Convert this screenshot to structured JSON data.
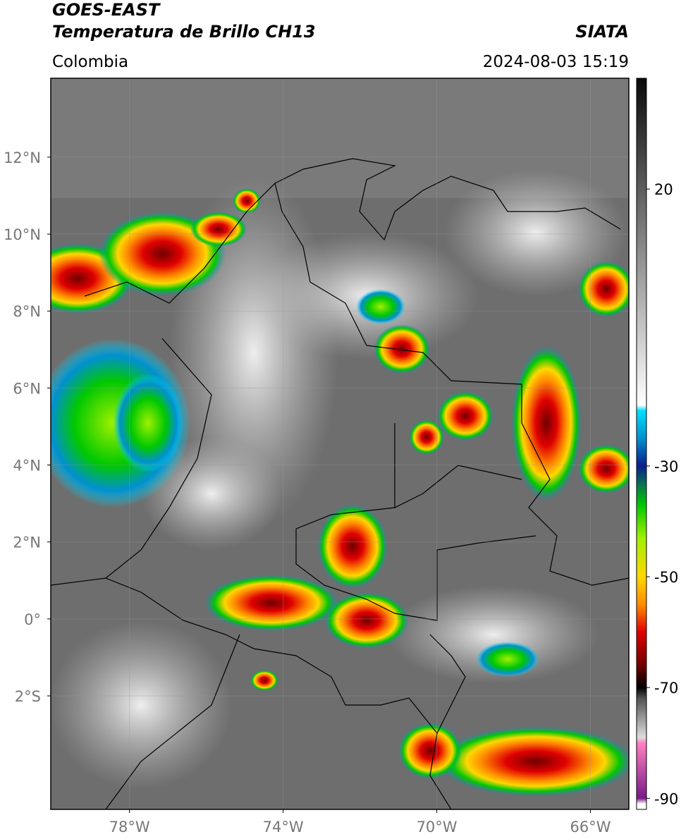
{
  "header": {
    "title": "GOES-EAST",
    "subtitle": "Temperatura de Brillo CH13",
    "source": "SIATA",
    "region": "Colombia",
    "datetime": "2024-08-03 15:19"
  },
  "map": {
    "xlim": [
      -80.05,
      -65
    ],
    "ylim": [
      -4.95,
      14.05
    ],
    "xticks": [
      {
        "value": -78,
        "label": "78°W"
      },
      {
        "value": -74,
        "label": "74°W"
      },
      {
        "value": -70,
        "label": "70°W"
      },
      {
        "value": -66,
        "label": "66°W"
      }
    ],
    "yticks": [
      {
        "value": 12,
        "label": "12°N"
      },
      {
        "value": 10,
        "label": "10°N"
      },
      {
        "value": 8,
        "label": "8°N"
      },
      {
        "value": 6,
        "label": "6°N"
      },
      {
        "value": 4,
        "label": "4°N"
      },
      {
        "value": 2,
        "label": "2°N"
      },
      {
        "value": 0,
        "label": "0°"
      },
      {
        "value": -2,
        "label": "2°S"
      }
    ],
    "grid": true
  },
  "colorbar": {
    "ylim": [
      -92,
      40
    ],
    "ticks": [
      20,
      -30,
      -50,
      -70,
      -90
    ],
    "stops": [
      {
        "value": 40,
        "color": "#0a0a0a"
      },
      {
        "value": -19,
        "color": "#ffffff"
      },
      {
        "value": -20,
        "color": "#00e0ff"
      },
      {
        "value": -25,
        "color": "#0090d0"
      },
      {
        "value": -30,
        "color": "#0a1e8c"
      },
      {
        "value": -33,
        "color": "#0a6a5a"
      },
      {
        "value": -37,
        "color": "#00c800"
      },
      {
        "value": -43,
        "color": "#a0f000"
      },
      {
        "value": -50,
        "color": "#ffd700"
      },
      {
        "value": -55,
        "color": "#ff8c00"
      },
      {
        "value": -60,
        "color": "#e00000"
      },
      {
        "value": -66,
        "color": "#700000"
      },
      {
        "value": -70,
        "color": "#000000"
      },
      {
        "value": -72,
        "color": "#555555"
      },
      {
        "value": -79,
        "color": "#dddddd"
      },
      {
        "value": -80,
        "color": "#ff80c0"
      },
      {
        "value": -90,
        "color": "#7a1a8a"
      },
      {
        "value": -91,
        "color": "#ffffff"
      },
      {
        "value": -92,
        "color": "#ffffff"
      }
    ]
  }
}
